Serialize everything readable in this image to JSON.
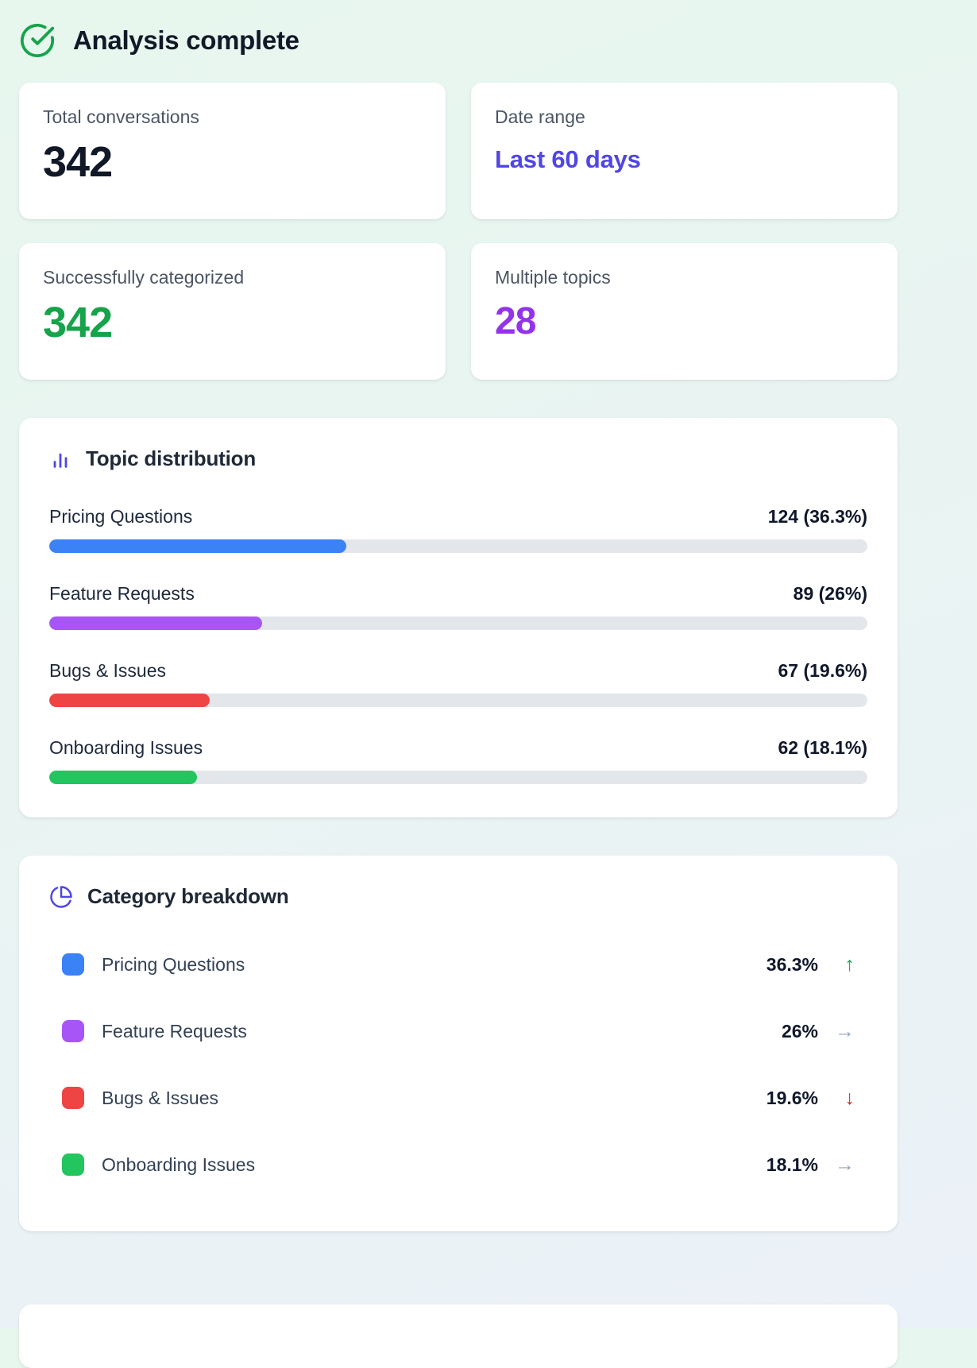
{
  "header": {
    "title": "Analysis complete",
    "icon": "check-circle",
    "icon_color": "#16a34a"
  },
  "stats": [
    {
      "label": "Total conversations",
      "value": "342",
      "value_color": "#111827"
    },
    {
      "label": "Date range",
      "value": "Last 60 days",
      "value_color": "#4f46e5"
    },
    {
      "label": "Successfully categorized",
      "value": "342",
      "value_color": "#16a34a"
    },
    {
      "label": "Multiple topics",
      "value": "28",
      "value_color": "#9333ea"
    }
  ],
  "topic_distribution": {
    "title": "Topic distribution",
    "icon": "bar-chart",
    "icon_color": "#4f46e5",
    "rows": [
      {
        "label": "Pricing Questions",
        "value_label": "124 (36.3%)",
        "count": 124,
        "percent": 36.3,
        "color": "#3b82f6"
      },
      {
        "label": "Feature Requests",
        "value_label": "89 (26%)",
        "count": 89,
        "percent": 26,
        "color": "#a855f7"
      },
      {
        "label": "Bugs & Issues",
        "value_label": "67 (19.6%)",
        "count": 67,
        "percent": 19.6,
        "color": "#ef4444"
      },
      {
        "label": "Onboarding Issues",
        "value_label": "62 (18.1%)",
        "count": 62,
        "percent": 18.1,
        "color": "#22c55e"
      }
    ]
  },
  "category_breakdown": {
    "title": "Category breakdown",
    "icon": "pie-chart",
    "icon_color": "#4f46e5",
    "rows": [
      {
        "label": "Pricing Questions",
        "value": "36.3%",
        "swatch_color": "#3b82f6",
        "trend": "up",
        "trend_glyph": "↑",
        "trend_color": "#16a34a"
      },
      {
        "label": "Feature Requests",
        "value": "26%",
        "swatch_color": "#a855f7",
        "trend": "flat",
        "trend_glyph": "→",
        "trend_color": "#94a3b8"
      },
      {
        "label": "Bugs & Issues",
        "value": "19.6%",
        "swatch_color": "#ef4444",
        "trend": "down",
        "trend_glyph": "↓",
        "trend_color": "#dc2626"
      },
      {
        "label": "Onboarding Issues",
        "value": "18.1%",
        "swatch_color": "#22c55e",
        "trend": "flat",
        "trend_glyph": "→",
        "trend_color": "#94a3b8"
      }
    ]
  },
  "chart_data": [
    {
      "type": "bar",
      "title": "Topic distribution",
      "orientation": "horizontal",
      "categories": [
        "Pricing Questions",
        "Feature Requests",
        "Bugs & Issues",
        "Onboarding Issues"
      ],
      "values": [
        124,
        89,
        67,
        62
      ],
      "percents": [
        36.3,
        26,
        19.6,
        18.1
      ],
      "value_labels": [
        "124 (36.3%)",
        "89 (26%)",
        "67 (19.6%)",
        "62 (18.1%)"
      ],
      "colors": [
        "#3b82f6",
        "#a855f7",
        "#ef4444",
        "#22c55e"
      ],
      "xlim": [
        0,
        100
      ],
      "grid": false,
      "legend": false
    },
    {
      "type": "table",
      "title": "Category breakdown",
      "categories": [
        "Pricing Questions",
        "Feature Requests",
        "Bugs & Issues",
        "Onboarding Issues"
      ],
      "values": [
        "36.3%",
        "26%",
        "19.6%",
        "18.1%"
      ],
      "trends": [
        "up",
        "flat",
        "down",
        "flat"
      ],
      "colors": [
        "#3b82f6",
        "#a855f7",
        "#ef4444",
        "#22c55e"
      ]
    }
  ]
}
